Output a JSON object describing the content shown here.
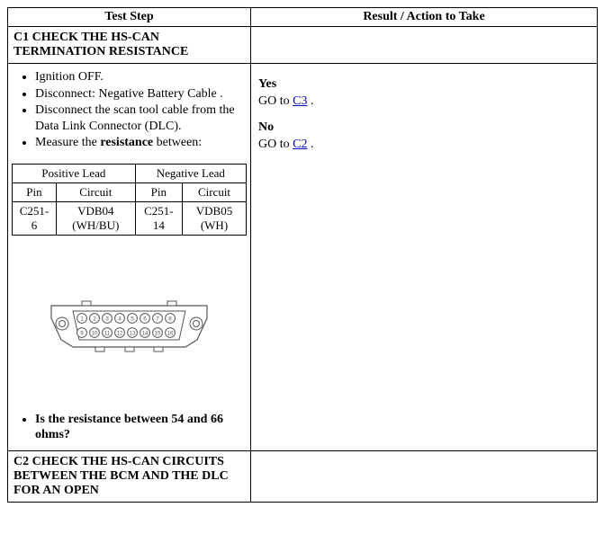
{
  "headers": {
    "left": "Test Step",
    "right": "Result / Action to Take"
  },
  "c1": {
    "title": "C1 CHECK THE HS-CAN TERMINATION RESISTANCE",
    "steps": [
      {
        "text": "Ignition OFF."
      },
      {
        "text": "Disconnect: Negative Battery Cable ."
      },
      {
        "text": "Disconnect the scan tool cable from the Data Link Connector (DLC)."
      },
      {
        "pre": "Measure the ",
        "bold": "resistance",
        "post": " between:"
      }
    ],
    "lead_table": {
      "group_headers": {
        "pos": "Positive Lead",
        "neg": "Negative Lead"
      },
      "col_headers": {
        "pin": "Pin",
        "circuit": "Circuit"
      },
      "row": {
        "pos_pin": "C251-6",
        "pos_circuit": "VDB04 (WH/BU)",
        "neg_pin": "C251-14",
        "neg_circuit": "VDB05 (WH)"
      }
    },
    "question": "Is the resistance between 54 and 66 ohms?",
    "result": {
      "yes_label": "Yes",
      "yes_pre": "GO to ",
      "yes_link": "C3",
      "yes_post": " .",
      "no_label": "No",
      "no_pre": "GO to ",
      "no_link": "C2",
      "no_post": " ."
    }
  },
  "c2": {
    "title": "C2 CHECK THE HS-CAN CIRCUITS BETWEEN THE BCM AND THE DLC FOR AN OPEN"
  },
  "connector": {
    "pin_count": 16,
    "top_row": [
      1,
      2,
      3,
      4,
      5,
      6,
      7,
      8
    ],
    "bottom_row": [
      9,
      10,
      11,
      12,
      13,
      14,
      15,
      16
    ],
    "stroke": "#555555",
    "fill": "#ffffff",
    "text_color": "#555555"
  }
}
